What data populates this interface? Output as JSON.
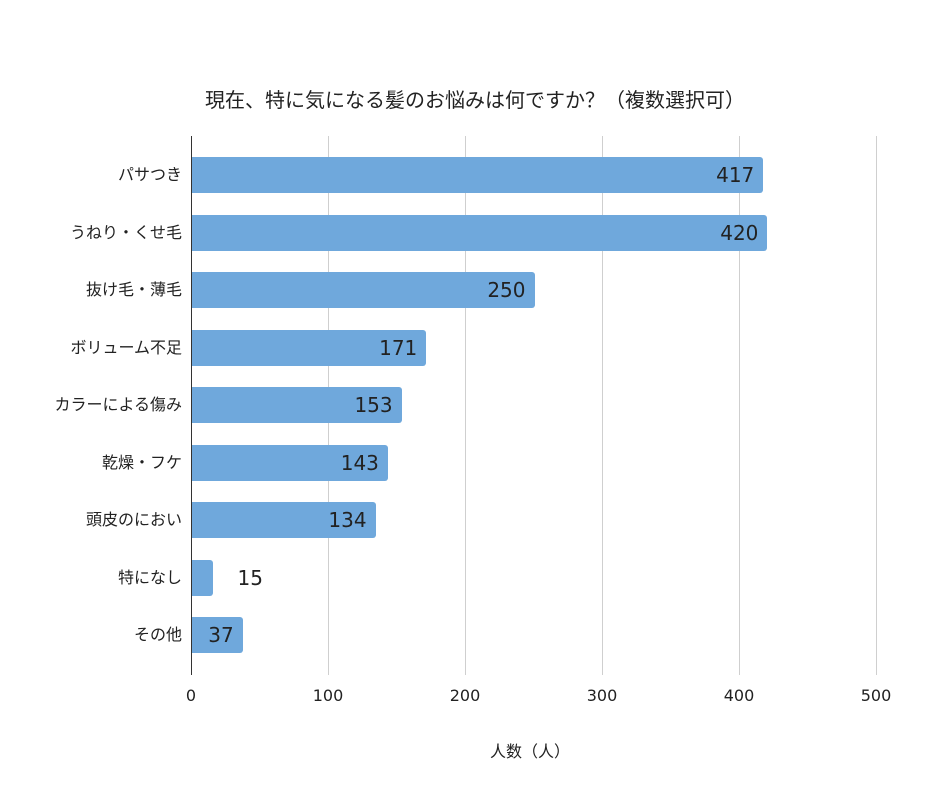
{
  "chart_data": {
    "type": "bar",
    "orientation": "horizontal",
    "title": "現在、特に気になる髪のお悩みは何ですか？（複数選択可）",
    "xlabel": "人数（人）",
    "ylabel": "",
    "categories": [
      "パサつき",
      "うねり・くせ毛",
      "抜け毛・薄毛",
      "ボリューム不足",
      "カラーによる傷み",
      "乾燥・フケ",
      "頭皮のにおい",
      "特になし",
      "その他"
    ],
    "values": [
      417,
      420,
      250,
      171,
      153,
      143,
      134,
      15,
      37
    ],
    "xlim": [
      0,
      500
    ],
    "xticks": [
      "0",
      "100",
      "200",
      "300",
      "400",
      "500"
    ],
    "grid": true,
    "bar_color": "#6fa8dc",
    "data_labels": true
  }
}
